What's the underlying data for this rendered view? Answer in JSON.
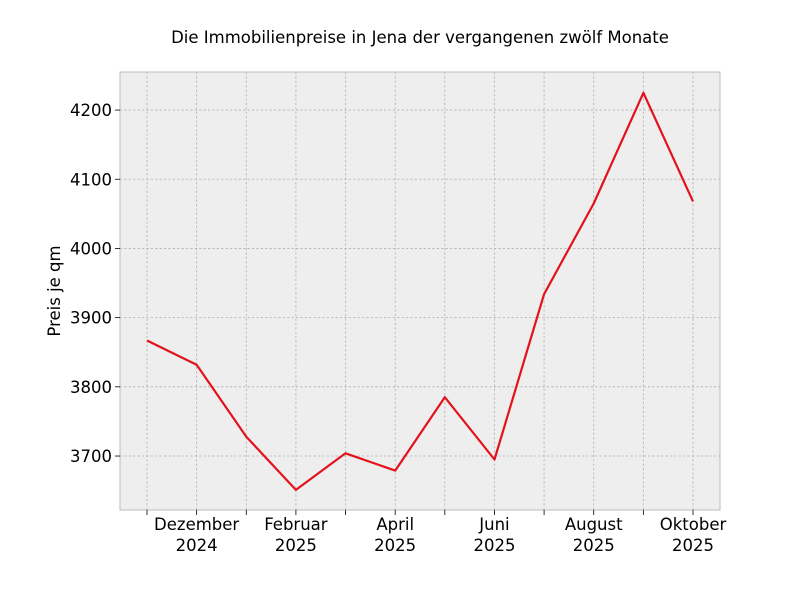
{
  "chart_data": {
    "type": "line",
    "title": "Die Immobilienpreise in Jena der vergangenen zwölf Monate",
    "xlabel": "",
    "ylabel": "Preis je qm",
    "x": [
      "2024-11",
      "2024-12",
      "2025-01",
      "2025-02",
      "2025-03",
      "2025-04",
      "2025-05",
      "2025-06",
      "2025-07",
      "2025-08",
      "2025-09",
      "2025-10"
    ],
    "series": [
      {
        "color": "#e3121b",
        "values": [
          3867,
          3832,
          3728,
          3651,
          3704,
          3679,
          3785,
          3695,
          3934,
          4065,
          4225,
          4068
        ]
      }
    ],
    "yticks": [
      3700,
      3800,
      3900,
      4000,
      4100,
      4200
    ],
    "ytick_labels": [
      "3700",
      "3800",
      "3900",
      "4000",
      "4100",
      "4200"
    ],
    "xtick_labels": [
      {
        "x": "2024-12",
        "lines": [
          "Dezember",
          "2024"
        ]
      },
      {
        "x": "2025-02",
        "lines": [
          "Februar",
          "2025"
        ]
      },
      {
        "x": "2025-04",
        "lines": [
          "April",
          "2025"
        ]
      },
      {
        "x": "2025-06",
        "lines": [
          "Juni",
          "2025"
        ]
      },
      {
        "x": "2025-08",
        "lines": [
          "August",
          "2025"
        ]
      },
      {
        "x": "2025-10",
        "lines": [
          "Oktober",
          "2025"
        ]
      }
    ],
    "ylim": [
      3622,
      4255
    ],
    "grid": true,
    "background": "#eeeeee"
  }
}
